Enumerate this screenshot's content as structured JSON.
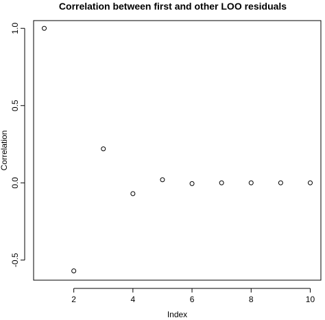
{
  "chart_data": {
    "type": "scatter",
    "title": "Correlation between first and other LOO residuals",
    "xlabel": "Index",
    "ylabel": "Correlation",
    "xlim": [
      0.64,
      10.36
    ],
    "ylim": [
      -0.63,
      1.05
    ],
    "xticks": [
      2,
      4,
      6,
      8,
      10
    ],
    "yticks": [
      -0.5,
      0.0,
      0.5,
      1.0
    ],
    "ytick_labels": [
      "-0.5",
      "0.0",
      "0.5",
      "1.0"
    ],
    "grid": false,
    "legend": "none",
    "marker": "open-circle",
    "x": [
      1,
      2,
      3,
      4,
      5,
      6,
      7,
      8,
      9,
      10
    ],
    "y": [
      1.0,
      -0.57,
      0.22,
      -0.07,
      0.02,
      -0.005,
      0.0,
      0.0,
      0.0,
      0.0
    ]
  }
}
